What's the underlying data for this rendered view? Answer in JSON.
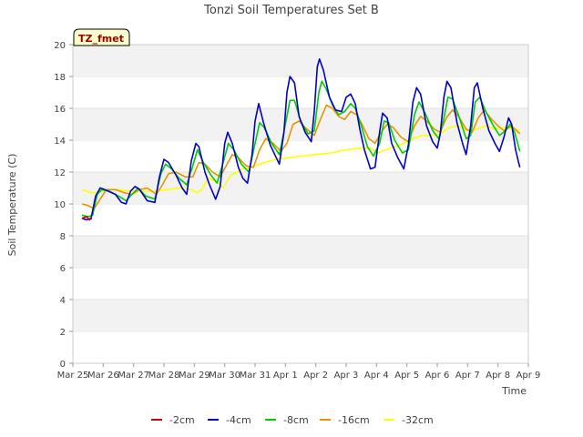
{
  "chart_data": {
    "type": "line",
    "title": "Tonzi Soil Temperatures Set B",
    "xlabel": "Time",
    "ylabel": "Soil Temperature (C)",
    "annotation": "TZ_fmet",
    "xlim": [
      0,
      15
    ],
    "ylim": [
      0,
      20
    ],
    "yticks": [
      0,
      2,
      4,
      6,
      8,
      10,
      12,
      14,
      16,
      18,
      20
    ],
    "x_tick_labels": [
      "Mar 25",
      "Mar 26",
      "Mar 27",
      "Mar 28",
      "Mar 29",
      "Mar 30",
      "Mar 31",
      "Apr 1",
      "Apr 2",
      "Apr 3",
      "Apr 4",
      "Apr 5",
      "Apr 6",
      "Apr 7",
      "Apr 8",
      "Apr 9"
    ],
    "legend_position": "bottom",
    "grid": "alternating horizontal bands",
    "series": [
      {
        "name": "-2cm",
        "color": "#cc0000",
        "points": [
          [
            0.3,
            9.1
          ],
          [
            0.45,
            9.2
          ],
          [
            0.55,
            9.0
          ],
          [
            0.62,
            9.1
          ]
        ]
      },
      {
        "name": "-4cm",
        "color": "#0000cc",
        "points": [
          [
            0.3,
            9.1
          ],
          [
            0.45,
            9.0
          ],
          [
            0.6,
            9.1
          ],
          [
            0.75,
            10.5
          ],
          [
            0.9,
            11.0
          ],
          [
            1.05,
            10.9
          ],
          [
            1.4,
            10.6
          ],
          [
            1.6,
            10.1
          ],
          [
            1.75,
            10.0
          ],
          [
            1.9,
            10.8
          ],
          [
            2.05,
            11.1
          ],
          [
            2.2,
            10.9
          ],
          [
            2.45,
            10.2
          ],
          [
            2.7,
            10.1
          ],
          [
            2.85,
            11.7
          ],
          [
            3.0,
            12.8
          ],
          [
            3.15,
            12.6
          ],
          [
            3.4,
            11.8
          ],
          [
            3.6,
            11.0
          ],
          [
            3.75,
            10.6
          ],
          [
            3.9,
            12.7
          ],
          [
            4.05,
            13.8
          ],
          [
            4.15,
            13.6
          ],
          [
            4.35,
            12.0
          ],
          [
            4.5,
            11.2
          ],
          [
            4.7,
            10.3
          ],
          [
            4.85,
            11.1
          ],
          [
            5.0,
            13.8
          ],
          [
            5.1,
            14.5
          ],
          [
            5.25,
            13.8
          ],
          [
            5.45,
            12.3
          ],
          [
            5.6,
            11.6
          ],
          [
            5.75,
            11.3
          ],
          [
            5.9,
            13.1
          ],
          [
            6.0,
            15.2
          ],
          [
            6.12,
            16.3
          ],
          [
            6.28,
            15.1
          ],
          [
            6.5,
            13.7
          ],
          [
            6.7,
            12.9
          ],
          [
            6.8,
            12.5
          ],
          [
            6.95,
            14.5
          ],
          [
            7.05,
            17.0
          ],
          [
            7.15,
            18.0
          ],
          [
            7.3,
            17.6
          ],
          [
            7.45,
            15.5
          ],
          [
            7.65,
            14.5
          ],
          [
            7.85,
            13.9
          ],
          [
            7.95,
            15.8
          ],
          [
            8.05,
            18.6
          ],
          [
            8.12,
            19.1
          ],
          [
            8.25,
            18.4
          ],
          [
            8.45,
            16.7
          ],
          [
            8.65,
            15.9
          ],
          [
            8.85,
            15.8
          ],
          [
            9.0,
            16.7
          ],
          [
            9.15,
            16.9
          ],
          [
            9.3,
            16.3
          ],
          [
            9.45,
            14.7
          ],
          [
            9.6,
            13.4
          ],
          [
            9.8,
            12.2
          ],
          [
            9.95,
            12.3
          ],
          [
            10.1,
            14.5
          ],
          [
            10.2,
            15.7
          ],
          [
            10.35,
            15.4
          ],
          [
            10.5,
            13.8
          ],
          [
            10.7,
            12.9
          ],
          [
            10.9,
            12.2
          ],
          [
            11.05,
            13.7
          ],
          [
            11.2,
            16.4
          ],
          [
            11.32,
            17.3
          ],
          [
            11.45,
            16.9
          ],
          [
            11.65,
            14.9
          ],
          [
            11.85,
            13.9
          ],
          [
            12.0,
            13.5
          ],
          [
            12.1,
            14.4
          ],
          [
            12.22,
            16.7
          ],
          [
            12.32,
            17.7
          ],
          [
            12.45,
            17.3
          ],
          [
            12.65,
            15.1
          ],
          [
            12.85,
            13.7
          ],
          [
            12.95,
            13.1
          ],
          [
            13.1,
            14.9
          ],
          [
            13.22,
            17.3
          ],
          [
            13.32,
            17.6
          ],
          [
            13.5,
            16.0
          ],
          [
            13.7,
            14.6
          ],
          [
            13.9,
            13.8
          ],
          [
            14.05,
            13.3
          ],
          [
            14.2,
            14.2
          ],
          [
            14.35,
            15.4
          ],
          [
            14.45,
            15.0
          ],
          [
            14.58,
            13.4
          ],
          [
            14.68,
            12.6
          ],
          [
            14.72,
            12.3
          ]
        ]
      },
      {
        "name": "-8cm",
        "color": "#00cc00",
        "points": [
          [
            0.3,
            9.3
          ],
          [
            0.5,
            9.2
          ],
          [
            0.65,
            9.3
          ],
          [
            0.8,
            10.6
          ],
          [
            0.95,
            10.9
          ],
          [
            1.2,
            10.8
          ],
          [
            1.5,
            10.5
          ],
          [
            1.75,
            10.2
          ],
          [
            1.95,
            10.6
          ],
          [
            2.15,
            11.0
          ],
          [
            2.4,
            10.5
          ],
          [
            2.7,
            10.3
          ],
          [
            2.9,
            11.9
          ],
          [
            3.05,
            12.5
          ],
          [
            3.25,
            12.2
          ],
          [
            3.5,
            11.6
          ],
          [
            3.75,
            11.2
          ],
          [
            3.95,
            12.4
          ],
          [
            4.1,
            13.4
          ],
          [
            4.3,
            12.6
          ],
          [
            4.55,
            11.8
          ],
          [
            4.75,
            11.3
          ],
          [
            4.95,
            12.6
          ],
          [
            5.12,
            13.8
          ],
          [
            5.3,
            13.4
          ],
          [
            5.55,
            12.5
          ],
          [
            5.8,
            12.0
          ],
          [
            6.0,
            13.8
          ],
          [
            6.15,
            15.1
          ],
          [
            6.3,
            14.8
          ],
          [
            6.55,
            13.8
          ],
          [
            6.8,
            13.1
          ],
          [
            7.0,
            15.0
          ],
          [
            7.15,
            16.5
          ],
          [
            7.3,
            16.5
          ],
          [
            7.5,
            15.2
          ],
          [
            7.75,
            14.4
          ],
          [
            7.95,
            14.6
          ],
          [
            8.1,
            17.0
          ],
          [
            8.2,
            17.7
          ],
          [
            8.35,
            17.2
          ],
          [
            8.55,
            16.2
          ],
          [
            8.75,
            15.6
          ],
          [
            8.95,
            15.8
          ],
          [
            9.15,
            16.3
          ],
          [
            9.3,
            16.0
          ],
          [
            9.5,
            14.9
          ],
          [
            9.7,
            13.6
          ],
          [
            9.9,
            13.0
          ],
          [
            10.1,
            13.8
          ],
          [
            10.25,
            15.2
          ],
          [
            10.4,
            15.1
          ],
          [
            10.6,
            14.0
          ],
          [
            10.85,
            13.2
          ],
          [
            11.05,
            13.4
          ],
          [
            11.25,
            15.6
          ],
          [
            11.4,
            16.4
          ],
          [
            11.6,
            15.7
          ],
          [
            11.85,
            14.6
          ],
          [
            12.05,
            14.1
          ],
          [
            12.2,
            15.2
          ],
          [
            12.35,
            16.7
          ],
          [
            12.5,
            16.6
          ],
          [
            12.75,
            15.3
          ],
          [
            12.95,
            14.1
          ],
          [
            13.1,
            14.3
          ],
          [
            13.25,
            16.4
          ],
          [
            13.4,
            16.7
          ],
          [
            13.6,
            15.8
          ],
          [
            13.85,
            14.9
          ],
          [
            14.05,
            14.3
          ],
          [
            14.25,
            14.6
          ],
          [
            14.4,
            15.0
          ],
          [
            14.55,
            14.5
          ],
          [
            14.72,
            13.3
          ]
        ]
      },
      {
        "name": "-16cm",
        "color": "#e69500",
        "points": [
          [
            0.3,
            10.0
          ],
          [
            0.5,
            9.9
          ],
          [
            0.7,
            9.7
          ],
          [
            0.9,
            10.3
          ],
          [
            1.1,
            10.9
          ],
          [
            1.4,
            10.9
          ],
          [
            1.7,
            10.7
          ],
          [
            1.95,
            10.6
          ],
          [
            2.2,
            10.9
          ],
          [
            2.45,
            11.0
          ],
          [
            2.75,
            10.6
          ],
          [
            2.95,
            11.2
          ],
          [
            3.15,
            11.9
          ],
          [
            3.4,
            12.0
          ],
          [
            3.7,
            11.7
          ],
          [
            3.95,
            11.7
          ],
          [
            4.15,
            12.6
          ],
          [
            4.35,
            12.5
          ],
          [
            4.6,
            12.0
          ],
          [
            4.85,
            11.7
          ],
          [
            5.05,
            12.4
          ],
          [
            5.25,
            13.1
          ],
          [
            5.45,
            12.9
          ],
          [
            5.7,
            12.4
          ],
          [
            5.95,
            12.3
          ],
          [
            6.15,
            13.4
          ],
          [
            6.35,
            14.1
          ],
          [
            6.6,
            13.8
          ],
          [
            6.85,
            13.3
          ],
          [
            7.05,
            13.8
          ],
          [
            7.25,
            15.0
          ],
          [
            7.45,
            15.2
          ],
          [
            7.7,
            14.7
          ],
          [
            7.95,
            14.3
          ],
          [
            8.15,
            15.3
          ],
          [
            8.35,
            16.2
          ],
          [
            8.55,
            16.0
          ],
          [
            8.75,
            15.5
          ],
          [
            8.95,
            15.3
          ],
          [
            9.15,
            15.8
          ],
          [
            9.35,
            15.6
          ],
          [
            9.55,
            14.9
          ],
          [
            9.75,
            14.1
          ],
          [
            9.95,
            13.8
          ],
          [
            10.15,
            14.5
          ],
          [
            10.35,
            15.0
          ],
          [
            10.55,
            14.8
          ],
          [
            10.8,
            14.2
          ],
          [
            11.05,
            13.9
          ],
          [
            11.25,
            14.9
          ],
          [
            11.45,
            15.5
          ],
          [
            11.65,
            15.2
          ],
          [
            11.9,
            14.7
          ],
          [
            12.1,
            14.5
          ],
          [
            12.3,
            15.4
          ],
          [
            12.5,
            15.9
          ],
          [
            12.7,
            15.5
          ],
          [
            12.95,
            14.7
          ],
          [
            13.15,
            14.5
          ],
          [
            13.35,
            15.4
          ],
          [
            13.55,
            15.9
          ],
          [
            13.75,
            15.4
          ],
          [
            14.0,
            14.9
          ],
          [
            14.2,
            14.6
          ],
          [
            14.45,
            14.9
          ],
          [
            14.72,
            14.4
          ]
        ]
      },
      {
        "name": "-32cm",
        "color": "#ffff00",
        "points": [
          [
            0.3,
            10.9
          ],
          [
            0.6,
            10.7
          ],
          [
            0.8,
            10.7
          ],
          [
            1.1,
            10.9
          ],
          [
            1.5,
            10.9
          ],
          [
            1.9,
            10.8
          ],
          [
            2.3,
            10.8
          ],
          [
            2.7,
            10.8
          ],
          [
            3.1,
            10.9
          ],
          [
            3.5,
            11.0
          ],
          [
            3.9,
            10.9
          ],
          [
            4.1,
            10.7
          ],
          [
            4.25,
            10.9
          ],
          [
            4.45,
            11.6
          ],
          [
            4.75,
            11.4
          ],
          [
            4.95,
            11.0
          ],
          [
            5.2,
            11.8
          ],
          [
            5.6,
            12.2
          ],
          [
            5.9,
            12.3
          ],
          [
            6.3,
            12.6
          ],
          [
            6.7,
            12.8
          ],
          [
            7.1,
            12.9
          ],
          [
            7.5,
            13.0
          ],
          [
            8.0,
            13.1
          ],
          [
            8.5,
            13.2
          ],
          [
            9.0,
            13.4
          ],
          [
            9.5,
            13.5
          ],
          [
            9.8,
            13.5
          ],
          [
            10.05,
            13.2
          ],
          [
            10.3,
            13.4
          ],
          [
            10.6,
            13.6
          ],
          [
            10.9,
            13.8
          ],
          [
            11.2,
            14.1
          ],
          [
            11.5,
            14.3
          ],
          [
            11.8,
            14.3
          ],
          [
            12.1,
            14.4
          ],
          [
            12.4,
            14.8
          ],
          [
            12.7,
            14.9
          ],
          [
            13.0,
            14.6
          ],
          [
            13.3,
            14.7
          ],
          [
            13.6,
            14.9
          ],
          [
            13.9,
            14.7
          ],
          [
            14.2,
            14.8
          ],
          [
            14.5,
            14.7
          ],
          [
            14.72,
            14.6
          ]
        ]
      }
    ]
  }
}
